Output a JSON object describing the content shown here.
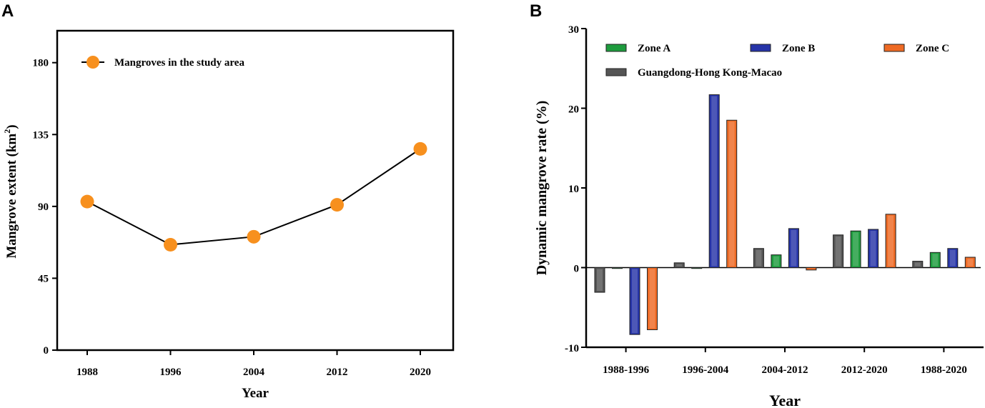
{
  "panel_a": {
    "letter": "A",
    "chart_data": {
      "type": "line",
      "title": "",
      "xlabel": "Year",
      "ylabel": "Mangrove extent (km",
      "ylabel_sup": "2",
      "ylabel_close": ")",
      "x": [
        "1988",
        "1996",
        "2004",
        "2012",
        "2020"
      ],
      "series": [
        {
          "name": "Mangroves in the study area",
          "values": [
            93,
            66,
            71,
            91,
            126
          ],
          "color": "#F7901E"
        }
      ],
      "yticks": [
        "0",
        "45",
        "90",
        "135",
        "180"
      ],
      "ylim": [
        0,
        200
      ],
      "legend": "top-left"
    }
  },
  "panel_b": {
    "letter": "B",
    "chart_data": {
      "type": "bar",
      "title": "",
      "xlabel": "Year",
      "ylabel": "Dynamic mangrove rate (%)",
      "categories": [
        "1988-1996",
        "1996-2004",
        "2004-2012",
        "2012-2020",
        "1988-2020"
      ],
      "series": [
        {
          "name": "Guangdong-Hong Kong-Macao",
          "color": "#555555",
          "values": [
            -3.1,
            0.6,
            2.4,
            4.1,
            0.8
          ]
        },
        {
          "name": "Zone A",
          "color": "#1E9C3E",
          "values": [
            0.0,
            0.0,
            1.6,
            4.6,
            1.9
          ]
        },
        {
          "name": "Zone B",
          "color": "#2634A8",
          "values": [
            -8.4,
            21.7,
            4.9,
            4.8,
            2.4
          ]
        },
        {
          "name": "Zone C",
          "color": "#EE6A24",
          "values": [
            -7.8,
            18.5,
            -0.3,
            6.7,
            1.3
          ]
        }
      ],
      "yticks": [
        "-10",
        "0",
        "10",
        "20",
        "30"
      ],
      "ylim": [
        -10,
        30
      ],
      "legend": "top"
    }
  }
}
